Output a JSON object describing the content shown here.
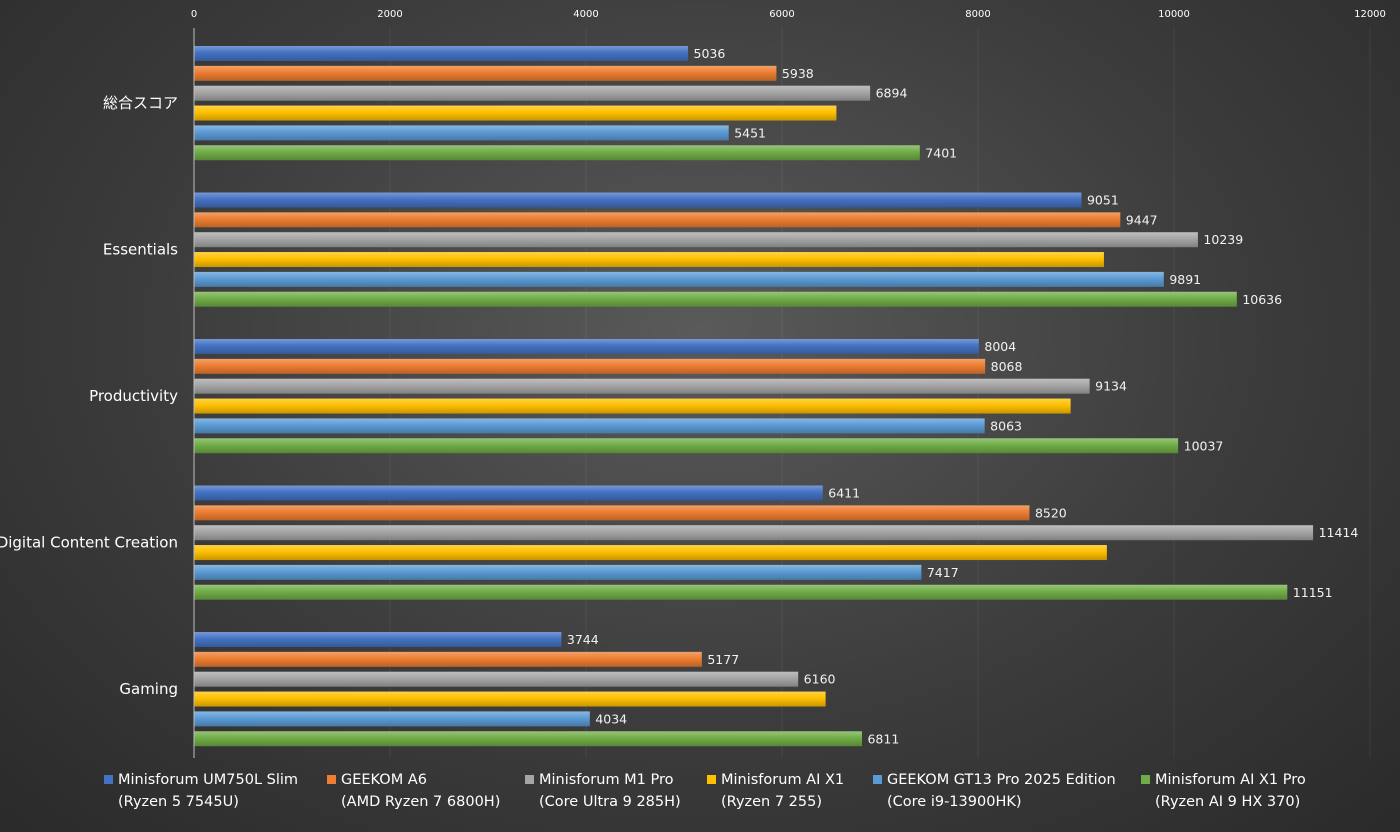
{
  "chart_data": {
    "type": "bar",
    "orientation": "horizontal",
    "title": "",
    "xlabel": "",
    "ylabel": "",
    "xlim": [
      0,
      12000
    ],
    "x_ticks": [
      0,
      2000,
      4000,
      6000,
      8000,
      10000,
      12000
    ],
    "grid": true,
    "legend_position": "bottom",
    "categories": [
      "総合スコア",
      "Essentials",
      "Productivity",
      "Digital Content Creation",
      "Gaming"
    ],
    "series": [
      {
        "name": "Minisforum UM750L Slim",
        "detail": "(Ryzen 5 7545U)",
        "color": "#4472c4",
        "values": [
          5036,
          9051,
          8004,
          6411,
          3744
        ],
        "labels": [
          "5036",
          "9051",
          "8004",
          "6411",
          "3744"
        ]
      },
      {
        "name": "GEEKOM A6",
        "detail": "(AMD Ryzen 7 6800H)",
        "color": "#ed7d31",
        "values": [
          5938,
          9447,
          8068,
          8520,
          5177
        ],
        "labels": [
          "5938",
          "9447",
          "8068",
          "8520",
          "5177"
        ]
      },
      {
        "name": "Minisforum M1 Pro",
        "detail": "(Core Ultra 9 285H)",
        "color": "#a5a5a5",
        "values": [
          6894,
          10239,
          9134,
          11414,
          6160
        ],
        "labels": [
          "6894",
          "10239",
          "9134",
          "11414",
          "6160"
        ]
      },
      {
        "name": "Minisforum AI X1",
        "detail": "(Ryzen 7 255)",
        "color": "#ffc000",
        "values": [
          6550,
          9280,
          8940,
          9310,
          6440
        ],
        "labels": [
          "",
          "",
          "",
          "",
          ""
        ]
      },
      {
        "name": "GEEKOM GT13 Pro 2025 Edition",
        "detail": "(Core i9-13900HK)",
        "color": "#5b9bd5",
        "values": [
          5451,
          9891,
          8063,
          7417,
          4034
        ],
        "labels": [
          "5451",
          "9891",
          "8063",
          "7417",
          "4034"
        ]
      },
      {
        "name": "Minisforum AI X1 Pro",
        "detail": "(Ryzen AI 9 HX 370)",
        "color": "#70ad47",
        "values": [
          7401,
          10636,
          10037,
          11151,
          6811
        ],
        "labels": [
          "7401",
          "10636",
          "10037",
          "11151",
          "6811"
        ]
      }
    ]
  }
}
